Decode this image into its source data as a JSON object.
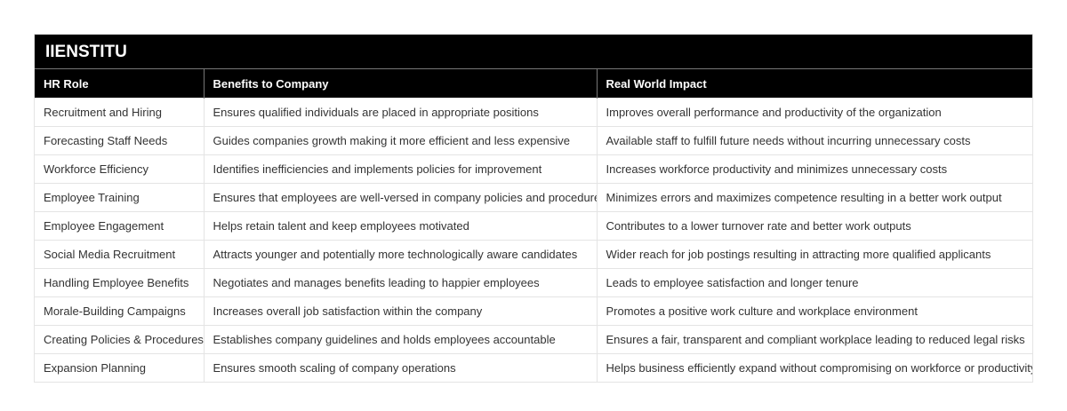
{
  "title": "IIENSTITU",
  "headers": [
    "HR Role",
    "Benefits to Company",
    "Real World Impact"
  ],
  "rows": [
    [
      "Recruitment and Hiring",
      "Ensures qualified individuals are placed in appropriate positions",
      "Improves overall performance and productivity of the organization"
    ],
    [
      "Forecasting Staff Needs",
      "Guides companies growth making it more efficient and less expensive",
      "Available staff to fulfill future needs without incurring unnecessary costs"
    ],
    [
      "Workforce Efficiency",
      "Identifies inefficiencies and implements policies for improvement",
      "Increases workforce productivity and minimizes unnecessary costs"
    ],
    [
      "Employee Training",
      "Ensures that employees are well-versed in company policies and procedures",
      "Minimizes errors and maximizes competence resulting in a better work output"
    ],
    [
      "Employee Engagement",
      "Helps retain talent and keep employees motivated",
      "Contributes to a lower turnover rate and better work outputs"
    ],
    [
      "Social Media Recruitment",
      "Attracts younger and potentially more technologically aware candidates",
      "Wider reach for job postings resulting in attracting more qualified applicants"
    ],
    [
      "Handling Employee Benefits",
      "Negotiates and manages benefits leading to happier employees",
      "Leads to employee satisfaction and longer tenure"
    ],
    [
      "Morale-Building Campaigns",
      "Increases overall job satisfaction within the company",
      "Promotes a positive work culture and workplace environment"
    ],
    [
      "Creating Policies & Procedures",
      "Establishes company guidelines and holds employees accountable",
      "Ensures a fair, transparent and compliant workplace leading to reduced legal risks"
    ],
    [
      "Expansion Planning",
      "Ensures smooth scaling of company operations",
      "Helps business efficiently expand without compromising on workforce or productivity"
    ]
  ]
}
